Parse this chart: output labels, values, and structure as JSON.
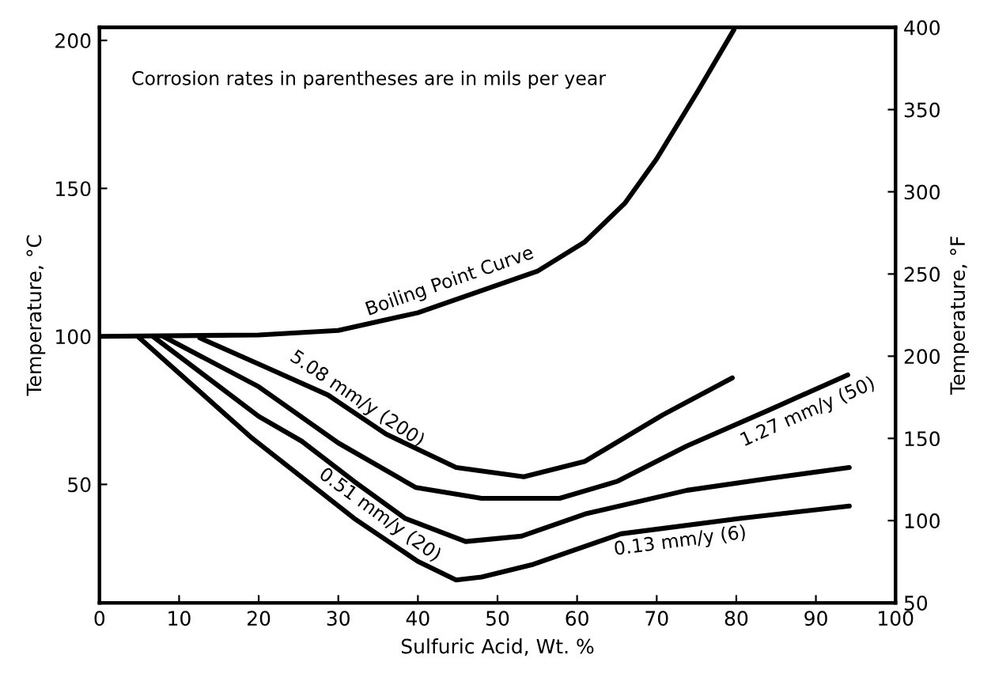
{
  "chart_data": {
    "type": "line",
    "xlabel": "Sulfuric Acid, Wt. %",
    "ylabel": "Temperature, °C",
    "y2label": "Temperature, °F",
    "annotations": [
      "Corrosion rates in parentheses are in mils per year"
    ],
    "xlim": [
      0,
      100
    ],
    "xticks": [
      0,
      10,
      20,
      30,
      40,
      50,
      60,
      70,
      80,
      90,
      100
    ],
    "ylim": [
      10,
      204.4
    ],
    "yticks": [
      50,
      100,
      150,
      200
    ],
    "y2lim": [
      50,
      400
    ],
    "y2ticks": [
      50,
      100,
      150,
      200,
      250,
      300,
      350,
      400
    ],
    "grid": false,
    "legend": false,
    "marker": "none",
    "line_style": "solid",
    "series": [
      {
        "name": "Boiling Point Curve",
        "color": "#000000",
        "x": [
          0,
          20,
          30,
          40,
          48,
          55,
          61,
          66,
          70,
          75.2,
          79.7
        ],
        "values": [
          100,
          100.5,
          102,
          108,
          115.5,
          122,
          132,
          145,
          160,
          183,
          203.6
        ]
      },
      {
        "name": "5.08 mm/y (200)",
        "color": "#000000",
        "x": [
          12.6,
          20.9,
          28.7,
          36,
          44.8,
          53.3,
          61,
          70.7,
          79.5
        ],
        "values": [
          99.5,
          89.6,
          80.2,
          67,
          55.7,
          52.6,
          57.8,
          73.4,
          86
        ]
      },
      {
        "name": "1.27 mm/y (50)",
        "color": "#000000",
        "x": [
          8,
          20,
          30,
          39.7,
          48,
          57.8,
          65,
          73.8,
          84,
          94
        ],
        "values": [
          100,
          83,
          64,
          49,
          45.3,
          45.3,
          51,
          63,
          75,
          87
        ]
      },
      {
        "name": "0.51 mm/y (20)",
        "color": "#000000",
        "x": [
          6.7,
          20,
          25.4,
          32,
          38.4,
          46,
          53,
          61,
          73.8,
          84,
          94.2
        ],
        "values": [
          100,
          73,
          64.6,
          51,
          38.5,
          30.7,
          32.5,
          40,
          48,
          52,
          55.7
        ]
      },
      {
        "name": "0.13 mm/y (6)",
        "color": "#000000",
        "x": [
          4.8,
          19,
          32,
          40,
          44.8,
          48,
          54.5,
          65.5,
          80.4,
          94.2
        ],
        "values": [
          100,
          66,
          38.5,
          24,
          17.7,
          18.7,
          23,
          33.3,
          38.5,
          42.7
        ]
      }
    ]
  }
}
